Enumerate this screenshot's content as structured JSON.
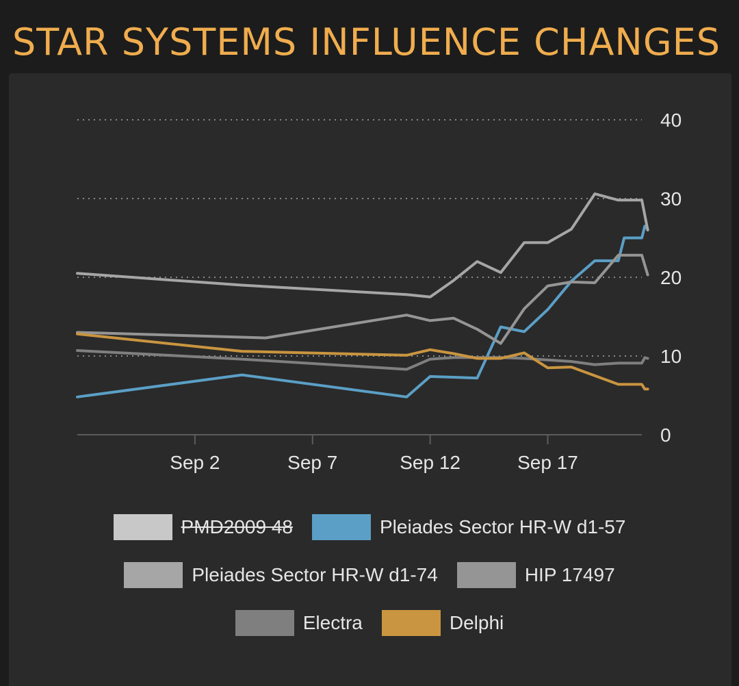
{
  "header": {
    "title": "STAR SYSTEMS INFLUENCE CHANGES"
  },
  "chart_data": {
    "type": "line",
    "title": "",
    "xlabel": "",
    "ylabel": "",
    "x_range": [
      "2020-08-28",
      "2020-09-21"
    ],
    "ylim": [
      0,
      40
    ],
    "y_ticks": [
      0,
      10,
      20,
      30,
      40
    ],
    "y_tick_labels": [
      "0",
      "10",
      "20",
      "30",
      "40"
    ],
    "x_ticks": [
      "2020-09-02",
      "2020-09-07",
      "2020-09-12",
      "2020-09-17"
    ],
    "x_tick_labels": [
      "Sep 2",
      "Sep 7",
      "Sep 12",
      "Sep 17"
    ],
    "grid": "horizontal-dotted",
    "legend_position": "bottom",
    "series": [
      {
        "name": "PMD2009 48",
        "hidden": true,
        "color": "#c8c8c8",
        "points": []
      },
      {
        "name": "Pleiades Sector HR-W d1-57",
        "color": "#5b9fc6",
        "points": [
          [
            "2020-08-28",
            4.8
          ],
          [
            "2020-09-04",
            7.6
          ],
          [
            "2020-09-11",
            4.8
          ],
          [
            "2020-09-12",
            7.4
          ],
          [
            "2020-09-13",
            7.3
          ],
          [
            "2020-09-14",
            7.2
          ],
          [
            "2020-09-15",
            13.7
          ],
          [
            "2020-09-16",
            13.1
          ],
          [
            "2020-09-17",
            15.9
          ],
          [
            "2020-09-18",
            19.5
          ],
          [
            "2020-09-19",
            22.1
          ],
          [
            "2020-09-20",
            22.1
          ],
          [
            "2020-09-20T06:00",
            25.0
          ],
          [
            "2020-09-21",
            25.0
          ],
          [
            "2020-09-21T03:00",
            26.5
          ],
          [
            "2020-09-21T06:00",
            26.1
          ]
        ]
      },
      {
        "name": "Pleiades Sector HR-W d1-74",
        "color": "#a6a6a6",
        "points": [
          [
            "2020-08-28",
            20.5
          ],
          [
            "2020-09-04",
            19.0
          ],
          [
            "2020-09-11",
            17.8
          ],
          [
            "2020-09-12",
            17.5
          ],
          [
            "2020-09-13",
            19.6
          ],
          [
            "2020-09-14",
            22.0
          ],
          [
            "2020-09-15",
            20.6
          ],
          [
            "2020-09-16",
            24.4
          ],
          [
            "2020-09-17",
            24.4
          ],
          [
            "2020-09-18",
            26.1
          ],
          [
            "2020-09-19",
            30.6
          ],
          [
            "2020-09-20",
            29.8
          ],
          [
            "2020-09-21",
            29.8
          ],
          [
            "2020-09-21T06:00",
            26.0
          ]
        ]
      },
      {
        "name": "HIP 17497",
        "color": "#959595",
        "points": [
          [
            "2020-08-28",
            13.0
          ],
          [
            "2020-09-05",
            12.3
          ],
          [
            "2020-09-11",
            15.2
          ],
          [
            "2020-09-12",
            14.5
          ],
          [
            "2020-09-13",
            14.8
          ],
          [
            "2020-09-14",
            13.4
          ],
          [
            "2020-09-15",
            11.6
          ],
          [
            "2020-09-16",
            16.0
          ],
          [
            "2020-09-17",
            18.9
          ],
          [
            "2020-09-18",
            19.4
          ],
          [
            "2020-09-19",
            19.3
          ],
          [
            "2020-09-20",
            22.8
          ],
          [
            "2020-09-21",
            22.8
          ],
          [
            "2020-09-21T06:00",
            20.3
          ]
        ]
      },
      {
        "name": "Electra",
        "color": "#7f7f7f",
        "points": [
          [
            "2020-08-28",
            10.7
          ],
          [
            "2020-09-04",
            9.6
          ],
          [
            "2020-09-11",
            8.3
          ],
          [
            "2020-09-12",
            9.6
          ],
          [
            "2020-09-13",
            9.8
          ],
          [
            "2020-09-14",
            9.8
          ],
          [
            "2020-09-15",
            9.8
          ],
          [
            "2020-09-16",
            9.7
          ],
          [
            "2020-09-17",
            9.5
          ],
          [
            "2020-09-18",
            9.3
          ],
          [
            "2020-09-19",
            8.9
          ],
          [
            "2020-09-20",
            9.1
          ],
          [
            "2020-09-21",
            9.1
          ],
          [
            "2020-09-21T03:00",
            9.8
          ],
          [
            "2020-09-21T06:00",
            9.7
          ]
        ]
      },
      {
        "name": "Delphi",
        "color": "#c99540",
        "points": [
          [
            "2020-08-28",
            12.8
          ],
          [
            "2020-09-04",
            10.6
          ],
          [
            "2020-09-11",
            10.1
          ],
          [
            "2020-09-12",
            10.8
          ],
          [
            "2020-09-13",
            10.3
          ],
          [
            "2020-09-14",
            9.7
          ],
          [
            "2020-09-15",
            9.7
          ],
          [
            "2020-09-16",
            10.4
          ],
          [
            "2020-09-17",
            8.5
          ],
          [
            "2020-09-18",
            8.6
          ],
          [
            "2020-09-19",
            7.5
          ],
          [
            "2020-09-20",
            6.4
          ],
          [
            "2020-09-21",
            6.4
          ],
          [
            "2020-09-21T03:00",
            5.8
          ],
          [
            "2020-09-21T06:00",
            5.8
          ]
        ]
      }
    ]
  }
}
